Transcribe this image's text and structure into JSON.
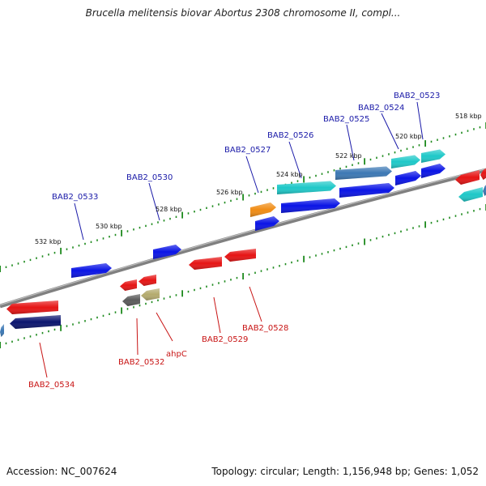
{
  "title": "Brucella melitensis biovar Abortus 2308 chromosome II, compl...",
  "footer": {
    "accession": "Accession: NC_007624",
    "stats": "Topology: circular; Length: 1,156,948 bp; Genes: 1,052"
  },
  "colors": {
    "background": "#ffffff",
    "backbone": "#808080",
    "ticks": "#1e8a1e",
    "forward_label": "#1a1aa8",
    "reverse_label": "#c81414",
    "gene_blue": "#0a14e6",
    "gene_cyan": "#1ec8c8",
    "gene_steel": "#3c78b4",
    "gene_orange": "#f08c14",
    "gene_red": "#e61414",
    "gene_navy": "#0a146e",
    "gene_gray": "#5a5a5a",
    "gene_olive": "#b4aa6e"
  },
  "scale_labels": [
    "518 kbp",
    "520 kbp",
    "522 kbp",
    "524 kbp",
    "526 kbp",
    "528 kbp",
    "530 kbp",
    "532 kbp"
  ],
  "forward_gene_labels": [
    "BAB2_0523",
    "BAB2_0524",
    "BAB2_0525",
    "BAB2_0526",
    "BAB2_0527",
    "BAB2_0530",
    "BAB2_0533"
  ],
  "reverse_gene_labels": [
    "BAB2_0528",
    "BAB2_0529",
    "ahpC",
    "BAB2_0532",
    "BAB2_0534"
  ]
}
